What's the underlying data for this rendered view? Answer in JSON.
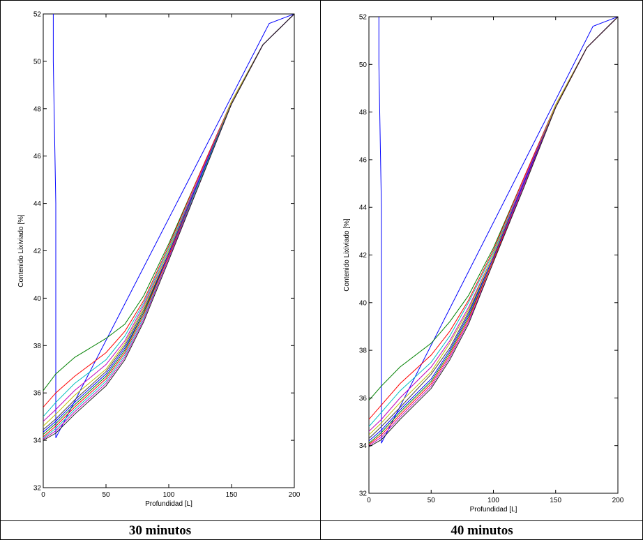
{
  "captions": [
    "30 minutos",
    "40 minutos"
  ],
  "chart_data": [
    {
      "type": "line",
      "xlabel": "Profundidad [L]",
      "ylabel": "Contenido Lixiviado [%]",
      "xlim": [
        0,
        200
      ],
      "ylim": [
        32,
        52
      ],
      "xticks": [
        "0",
        "50",
        "100",
        "150",
        "200"
      ],
      "yticks": [
        "32",
        "34",
        "36",
        "38",
        "40",
        "42",
        "44",
        "46",
        "48",
        "50",
        "52"
      ],
      "grid": false,
      "series": [
        {
          "color": "#0000ff",
          "x": [
            8,
            8,
            10,
            10,
            180,
            200
          ],
          "y": [
            52,
            50,
            44,
            34.1,
            51.6,
            52
          ]
        },
        {
          "color": "#008000",
          "x": [
            0,
            10,
            25,
            50,
            65,
            80,
            100,
            125,
            150,
            175,
            200
          ],
          "y": [
            36.1,
            36.8,
            37.5,
            38.3,
            38.9,
            40.1,
            42.3,
            45.3,
            48.3,
            50.7,
            52
          ]
        },
        {
          "color": "#ff0000",
          "x": [
            0,
            10,
            25,
            50,
            65,
            80,
            100,
            125,
            150,
            175,
            200
          ],
          "y": [
            35.4,
            36.0,
            36.7,
            37.7,
            38.6,
            39.9,
            42.2,
            45.3,
            48.3,
            50.7,
            52
          ]
        },
        {
          "color": "#00bfbf",
          "x": [
            0,
            10,
            25,
            50,
            65,
            80,
            100,
            125,
            150,
            175,
            200
          ],
          "y": [
            35.0,
            35.6,
            36.4,
            37.4,
            38.4,
            39.8,
            42.1,
            45.2,
            48.3,
            50.7,
            52
          ]
        },
        {
          "color": "#bf00bf",
          "x": [
            0,
            10,
            25,
            50,
            65,
            80,
            100,
            125,
            150,
            175,
            200
          ],
          "y": [
            34.8,
            35.3,
            36.1,
            37.2,
            38.2,
            39.7,
            42.0,
            45.2,
            48.3,
            50.7,
            52
          ]
        },
        {
          "color": "#bfbf00",
          "x": [
            0,
            10,
            25,
            50,
            65,
            80,
            100,
            125,
            150,
            175,
            200
          ],
          "y": [
            34.6,
            35.1,
            35.9,
            37.0,
            38.1,
            39.6,
            42.0,
            45.1,
            48.3,
            50.7,
            52
          ]
        },
        {
          "color": "#404040",
          "x": [
            0,
            10,
            25,
            50,
            65,
            80,
            100,
            125,
            150,
            175,
            200
          ],
          "y": [
            34.45,
            34.9,
            35.7,
            36.9,
            38.0,
            39.5,
            41.9,
            45.1,
            48.2,
            50.7,
            52
          ]
        },
        {
          "color": "#0000ff",
          "x": [
            0,
            10,
            25,
            50,
            65,
            80,
            100,
            125,
            150,
            175,
            200
          ],
          "y": [
            34.35,
            34.8,
            35.6,
            36.8,
            37.9,
            39.4,
            41.9,
            45.1,
            48.2,
            50.7,
            52
          ]
        },
        {
          "color": "#008000",
          "x": [
            0,
            10,
            25,
            50,
            65,
            80,
            100,
            125,
            150,
            175,
            200
          ],
          "y": [
            34.25,
            34.7,
            35.5,
            36.7,
            37.8,
            39.4,
            41.8,
            45.0,
            48.2,
            50.7,
            52
          ]
        },
        {
          "color": "#ff0000",
          "x": [
            0,
            10,
            25,
            50,
            65,
            80,
            100,
            125,
            150,
            175,
            200
          ],
          "y": [
            34.15,
            34.6,
            35.4,
            36.6,
            37.7,
            39.3,
            41.8,
            45.0,
            48.2,
            50.7,
            52
          ]
        },
        {
          "color": "#00bfbf",
          "x": [
            0,
            10,
            25,
            50,
            65,
            80,
            100,
            125,
            150,
            175,
            200
          ],
          "y": [
            34.1,
            34.5,
            35.3,
            36.5,
            37.6,
            39.2,
            41.7,
            45.0,
            48.2,
            50.7,
            52
          ]
        },
        {
          "color": "#bf00bf",
          "x": [
            0,
            10,
            25,
            50,
            65,
            80,
            100,
            125,
            150,
            175,
            200
          ],
          "y": [
            34.05,
            34.4,
            35.2,
            36.4,
            37.5,
            39.1,
            41.7,
            44.9,
            48.2,
            50.7,
            52
          ]
        },
        {
          "color": "#202020",
          "x": [
            0,
            10,
            25,
            50,
            65,
            80,
            100,
            125,
            150,
            175,
            200
          ],
          "y": [
            34.0,
            34.3,
            35.1,
            36.3,
            37.4,
            39.0,
            41.6,
            44.9,
            48.2,
            50.7,
            52
          ]
        }
      ]
    },
    {
      "type": "line",
      "xlabel": "Profundidad [L]",
      "ylabel": "Contenido Lixiviado [%]",
      "xlim": [
        0,
        200
      ],
      "ylim": [
        32,
        52
      ],
      "xticks": [
        "0",
        "50",
        "100",
        "150",
        "200"
      ],
      "yticks": [
        "32",
        "34",
        "36",
        "38",
        "40",
        "42",
        "44",
        "46",
        "48",
        "50",
        "52"
      ],
      "grid": false,
      "series": [
        {
          "color": "#0000ff",
          "x": [
            8,
            8,
            10,
            10,
            180,
            200
          ],
          "y": [
            52,
            50,
            44,
            34.1,
            51.6,
            52
          ]
        },
        {
          "color": "#008000",
          "x": [
            0,
            10,
            25,
            50,
            65,
            80,
            100,
            125,
            150,
            175,
            200
          ],
          "y": [
            35.9,
            36.5,
            37.3,
            38.3,
            39.2,
            40.3,
            42.3,
            45.3,
            48.3,
            50.7,
            52
          ]
        },
        {
          "color": "#ff0000",
          "x": [
            0,
            10,
            25,
            50,
            65,
            80,
            100,
            125,
            150,
            175,
            200
          ],
          "y": [
            35.1,
            35.7,
            36.6,
            37.8,
            38.8,
            40.1,
            42.2,
            45.3,
            48.3,
            50.7,
            52
          ]
        },
        {
          "color": "#00bfbf",
          "x": [
            0,
            10,
            25,
            50,
            65,
            80,
            100,
            125,
            150,
            175,
            200
          ],
          "y": [
            34.8,
            35.4,
            36.3,
            37.5,
            38.6,
            40.0,
            42.1,
            45.2,
            48.3,
            50.7,
            52
          ]
        },
        {
          "color": "#bf00bf",
          "x": [
            0,
            10,
            25,
            50,
            65,
            80,
            100,
            125,
            150,
            175,
            200
          ],
          "y": [
            34.6,
            35.1,
            36.0,
            37.3,
            38.4,
            39.8,
            42.0,
            45.2,
            48.3,
            50.7,
            52
          ]
        },
        {
          "color": "#bfbf00",
          "x": [
            0,
            10,
            25,
            50,
            65,
            80,
            100,
            125,
            150,
            175,
            200
          ],
          "y": [
            34.45,
            34.95,
            35.8,
            37.1,
            38.3,
            39.7,
            42.0,
            45.1,
            48.3,
            50.7,
            52
          ]
        },
        {
          "color": "#404040",
          "x": [
            0,
            10,
            25,
            50,
            65,
            80,
            100,
            125,
            150,
            175,
            200
          ],
          "y": [
            34.3,
            34.8,
            35.6,
            37.0,
            38.1,
            39.6,
            41.9,
            45.1,
            48.2,
            50.7,
            52
          ]
        },
        {
          "color": "#0000ff",
          "x": [
            0,
            10,
            25,
            50,
            65,
            80,
            100,
            125,
            150,
            175,
            200
          ],
          "y": [
            34.2,
            34.65,
            35.5,
            36.8,
            38.0,
            39.5,
            41.9,
            45.1,
            48.2,
            50.7,
            52
          ]
        },
        {
          "color": "#008000",
          "x": [
            0,
            10,
            25,
            50,
            65,
            80,
            100,
            125,
            150,
            175,
            200
          ],
          "y": [
            34.1,
            34.55,
            35.4,
            36.7,
            37.9,
            39.4,
            41.8,
            45.0,
            48.2,
            50.7,
            52
          ]
        },
        {
          "color": "#ff0000",
          "x": [
            0,
            10,
            25,
            50,
            65,
            80,
            100,
            125,
            150,
            175,
            200
          ],
          "y": [
            34.05,
            34.45,
            35.3,
            36.6,
            37.8,
            39.3,
            41.8,
            45.0,
            48.2,
            50.7,
            52
          ]
        },
        {
          "color": "#bf00bf",
          "x": [
            0,
            10,
            25,
            50,
            65,
            80,
            100,
            125,
            150,
            175,
            200
          ],
          "y": [
            34.0,
            34.35,
            35.2,
            36.5,
            37.7,
            39.2,
            41.7,
            45.0,
            48.2,
            50.7,
            52
          ]
        },
        {
          "color": "#202020",
          "x": [
            0,
            10,
            25,
            50,
            65,
            80,
            100,
            125,
            150,
            175,
            200
          ],
          "y": [
            33.95,
            34.25,
            35.1,
            36.4,
            37.6,
            39.1,
            41.7,
            44.9,
            48.2,
            50.7,
            52
          ]
        }
      ]
    }
  ]
}
